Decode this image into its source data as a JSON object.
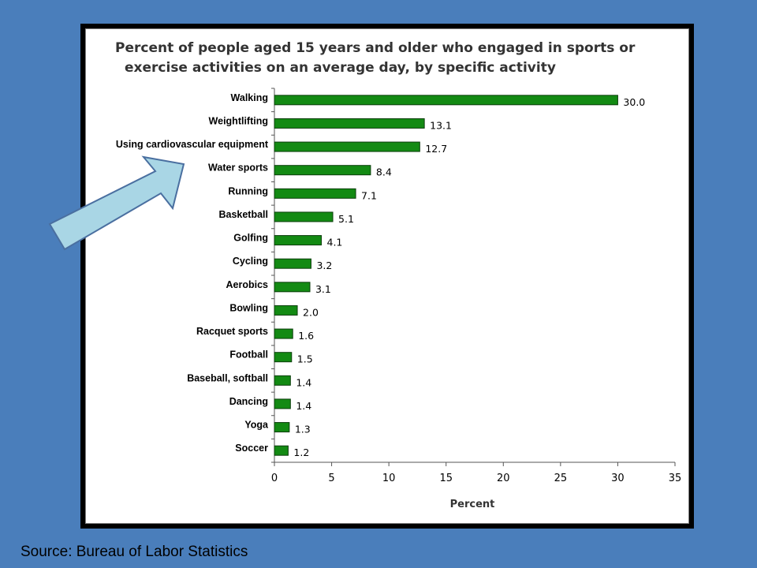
{
  "source": "Source: Bureau of Labor Statistics",
  "colors": {
    "background": "#4a7ebb",
    "bar": "#138a13",
    "arrow_fill": "#a9d6e5",
    "arrow_stroke": "#4a6fa0"
  },
  "chart_data": {
    "type": "bar",
    "orientation": "horizontal",
    "title_line1": "Percent of people aged 15 years and older who engaged in sports or",
    "title_line2": "exercise activities on an average day, by specific activity",
    "xlabel": "Percent",
    "ylabel": "",
    "xlim": [
      0,
      35
    ],
    "xticks": [
      0,
      5,
      10,
      15,
      20,
      25,
      30,
      35
    ],
    "grid": false,
    "categories": [
      "Walking",
      "Weightlifting",
      "Using cardiovascular equipment",
      "Water sports",
      "Running",
      "Basketball",
      "Golfing",
      "Cycling",
      "Aerobics",
      "Bowling",
      "Racquet sports",
      "Football",
      "Baseball, softball",
      "Dancing",
      "Yoga",
      "Soccer"
    ],
    "values": [
      30.0,
      13.1,
      12.7,
      8.4,
      7.1,
      5.1,
      4.1,
      3.2,
      3.1,
      2.0,
      1.6,
      1.5,
      1.4,
      1.4,
      1.3,
      1.2
    ],
    "value_labels": [
      "30.0",
      "13.1",
      "12.7",
      "8.4",
      "7.1",
      "5.1",
      "4.1",
      "3.2",
      "3.1",
      "2.0",
      "1.6",
      "1.5",
      "1.4",
      "1.4",
      "1.3",
      "1.2"
    ],
    "annotations": [
      "arrow pointing to Water sports"
    ]
  }
}
